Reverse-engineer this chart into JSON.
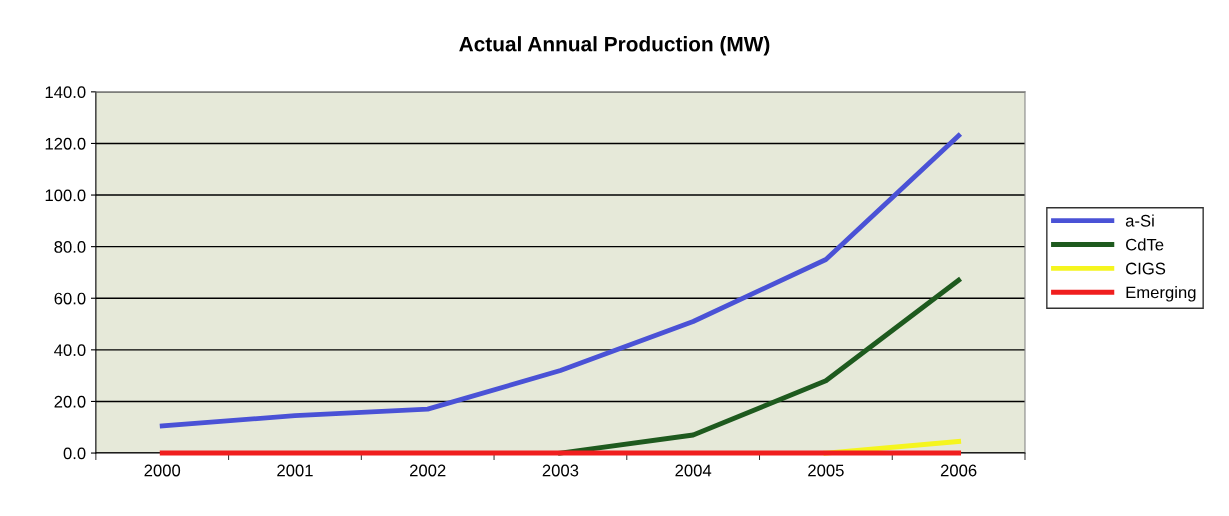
{
  "chart_data": {
    "type": "line",
    "title": "Actual Annual Production (MW)",
    "categories": [
      "2000",
      "2001",
      "2002",
      "2003",
      "2004",
      "2005",
      "2006"
    ],
    "series": [
      {
        "name": "a-Si",
        "color": "#4a52d6",
        "values": [
          10.5,
          14.5,
          17.0,
          32.0,
          51.0,
          75.0,
          123.0
        ]
      },
      {
        "name": "CdTe",
        "color": "#1e5a1e",
        "values": [
          null,
          null,
          null,
          0.0,
          7.0,
          28.0,
          67.0
        ]
      },
      {
        "name": "CIGS",
        "color": "#f5f51e",
        "values": [
          null,
          null,
          null,
          null,
          null,
          0.0,
          4.5
        ]
      },
      {
        "name": "Emerging",
        "color": "#f01e1e",
        "values": [
          0.0,
          0.0,
          0.0,
          0.0,
          0.0,
          0.0,
          0.0
        ]
      }
    ],
    "ylim": [
      0,
      140
    ],
    "yticks": [
      {
        "value": 0,
        "label": "0.0"
      },
      {
        "value": 20,
        "label": "20.0"
      },
      {
        "value": 40,
        "label": "40.0"
      },
      {
        "value": 60,
        "label": "60.0"
      },
      {
        "value": 80,
        "label": "80.0"
      },
      {
        "value": 100,
        "label": "100.0"
      },
      {
        "value": 120,
        "label": "120.0"
      },
      {
        "value": 140,
        "label": "140.0"
      }
    ],
    "grid": "y",
    "legend": "right",
    "marker": "none",
    "line_style": "solid"
  }
}
